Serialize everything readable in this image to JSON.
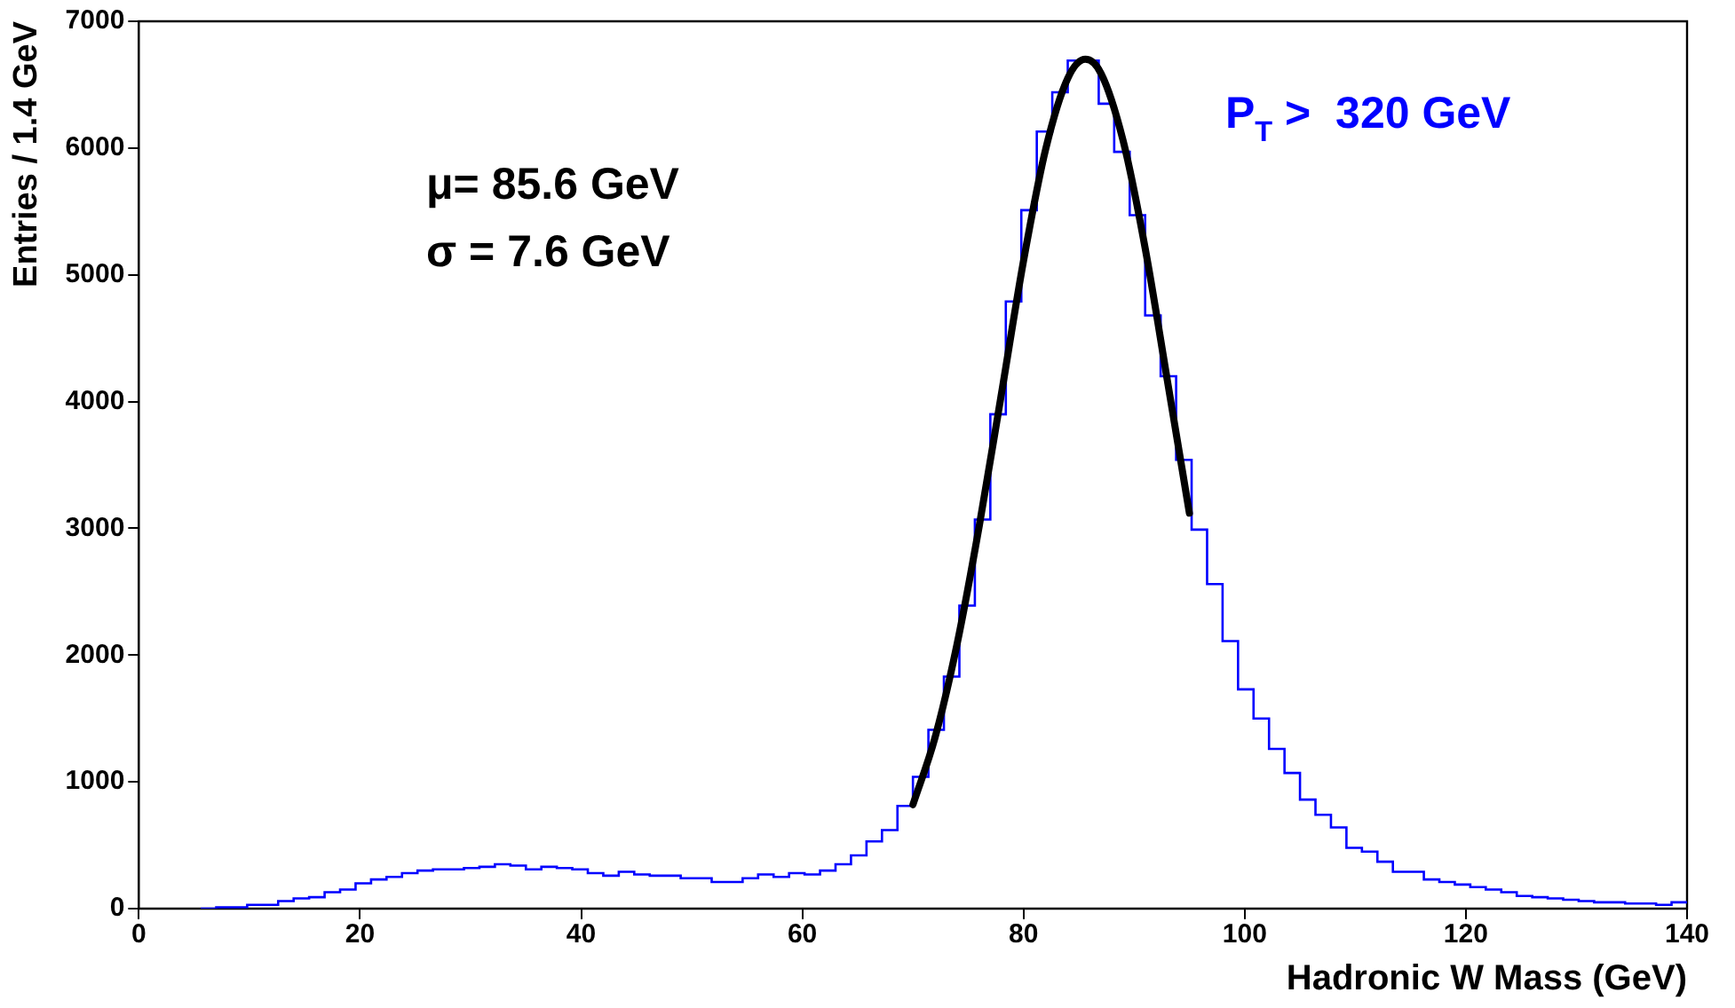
{
  "chart_data": {
    "type": "histogram",
    "xlabel": "Hadronic W Mass (GeV)",
    "ylabel": "Entries / 1.4 GeV",
    "annotations": [
      "μ= 85.6 GeV",
      "σ = 7.6 GeV",
      "P$_{T}$ >  320 GeV"
    ],
    "bins": [
      5.6,
      7,
      8.4,
      9.8,
      11.2,
      12.6,
      14,
      15.4,
      16.8,
      18.2,
      19.6,
      21,
      22.4,
      23.8,
      25.2,
      26.6,
      28,
      29.4,
      30.8,
      32.2,
      33.6,
      35,
      36.4,
      37.8,
      39.2,
      40.6,
      42,
      43.4,
      44.8,
      46.2,
      47.6,
      49,
      50.4,
      51.8,
      53.2,
      54.6,
      56,
      57.4,
      58.8,
      60.2,
      61.6,
      63,
      64.4,
      65.8,
      67.2,
      68.6,
      70,
      71.4,
      72.8,
      74.2,
      75.6,
      77,
      78.4,
      79.8,
      81.2,
      82.6,
      84,
      85.4,
      86.8,
      88.2,
      89.6,
      91,
      92.4,
      93.8,
      95.2,
      96.6,
      98,
      99.4,
      100.8,
      102.2,
      103.6,
      105,
      106.4,
      107.8,
      109.2,
      110.6,
      112,
      113.4,
      114.8,
      116.2,
      117.6,
      119,
      120.4,
      121.8,
      123.2,
      124.6,
      126,
      127.4,
      128.8,
      130.2,
      131.6,
      133,
      134.4,
      135.8,
      137.2,
      138.6,
      140
    ],
    "series": [
      {
        "color": "#0000ff",
        "values": [
          0,
          10,
          10,
          30,
          30,
          60,
          80,
          90,
          130,
          150,
          200,
          230,
          250,
          280,
          300,
          310,
          310,
          320,
          330,
          350,
          340,
          310,
          330,
          320,
          310,
          280,
          260,
          290,
          270,
          260,
          260,
          240,
          240,
          210,
          210,
          240,
          270,
          250,
          280,
          270,
          300,
          350,
          420,
          530,
          620,
          810,
          1040,
          1410,
          1830,
          2390,
          3070,
          3900,
          4790,
          5510,
          6130,
          6440,
          6690,
          6690,
          6350,
          5970,
          5470,
          4680,
          4200,
          3540,
          2990,
          2560,
          2110,
          1730,
          1500,
          1260,
          1070,
          860,
          740,
          640,
          480,
          450,
          370,
          290,
          290,
          230,
          210,
          190,
          170,
          150,
          130,
          100,
          90,
          80,
          70,
          60,
          50,
          50,
          40,
          40,
          30,
          50
        ]
      },
      {
        "type": "line",
        "color": "#000000",
        "x": [
          70,
          72,
          74,
          76,
          78,
          80,
          82,
          84,
          85.6,
          87,
          89,
          91,
          93,
          95
        ],
        "values": [
          820,
          1350,
          2090,
          3020,
          4060,
          5110,
          5990,
          6550,
          6700,
          6590,
          6060,
          5210,
          4170,
          3120
        ]
      }
    ],
    "xlim": [
      0,
      140
    ],
    "xticks": [
      0,
      20,
      40,
      60,
      80,
      100,
      120,
      140
    ],
    "ylim": [
      0,
      7000
    ],
    "yticks": [
      0,
      1000,
      2000,
      3000,
      4000,
      5000,
      6000,
      7000
    ],
    "grid": false,
    "legend": false
  }
}
